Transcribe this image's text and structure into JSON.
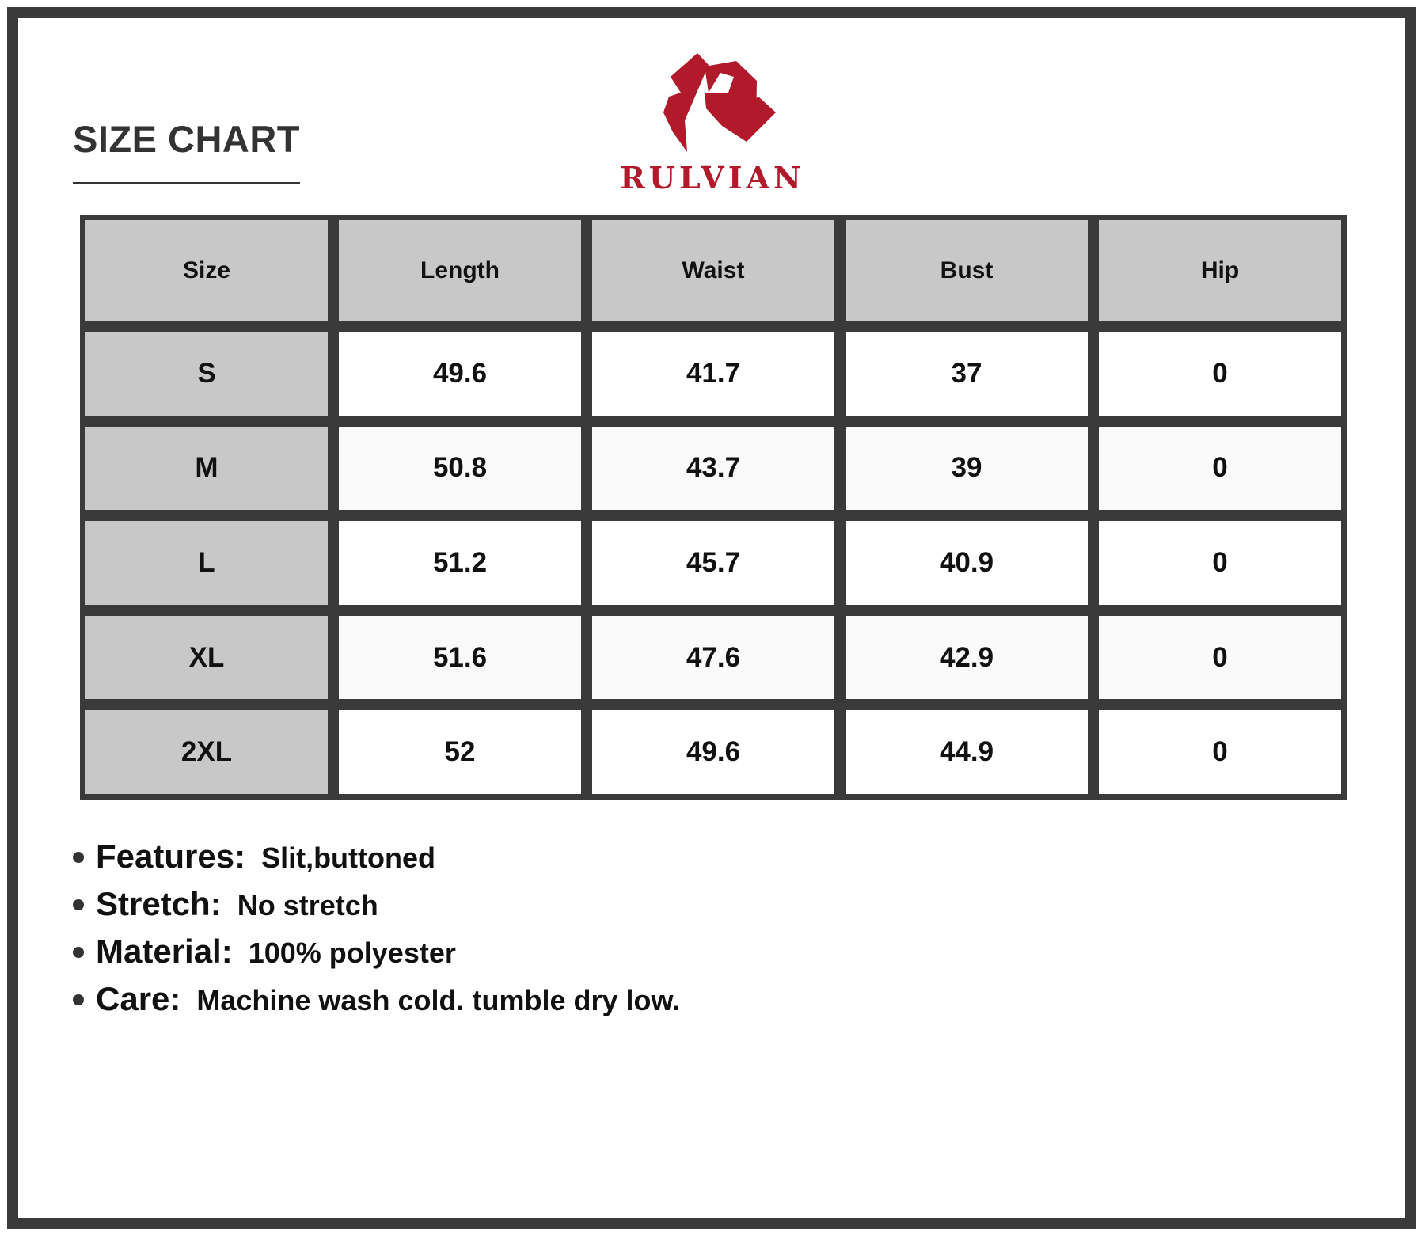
{
  "title": "SIZE CHART",
  "brand": {
    "name": "RULVIAN",
    "color": "#b01a2a"
  },
  "table": {
    "headers": [
      "Size",
      "Length",
      "Waist",
      "Bust",
      "Hip"
    ],
    "rows": [
      [
        "S",
        "49.6",
        "41.7",
        "37",
        "0"
      ],
      [
        "M",
        "50.8",
        "43.7",
        "39",
        "0"
      ],
      [
        "L",
        "51.2",
        "45.7",
        "40.9",
        "0"
      ],
      [
        "XL",
        "51.6",
        "47.6",
        "42.9",
        "0"
      ],
      [
        "2XL",
        "52",
        "49.6",
        "44.9",
        "0"
      ]
    ]
  },
  "features": [
    {
      "label": "Features:",
      "value": "Slit,buttoned"
    },
    {
      "label": "Stretch:",
      "value": "No stretch"
    },
    {
      "label": "Material:",
      "value": "100% polyester"
    },
    {
      "label": "Care:",
      "value": "Machine wash cold. tumble dry low."
    }
  ]
}
